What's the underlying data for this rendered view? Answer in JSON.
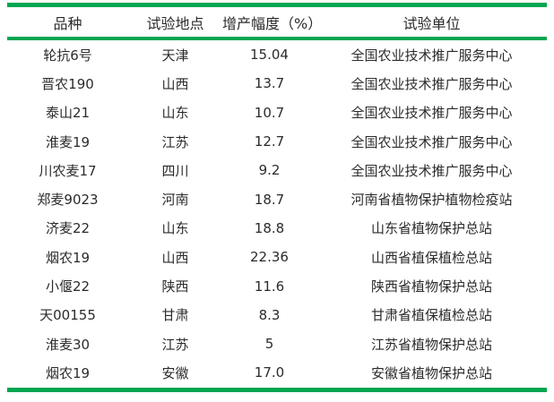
{
  "accent_color": "#00a651",
  "text_color": "#2b2b2b",
  "background_color": "#ffffff",
  "table": {
    "headers": [
      "品种",
      "试验地点",
      "增产幅度（%）",
      "试验单位"
    ],
    "column_keys": [
      "variety",
      "location",
      "yield-increase",
      "test-unit"
    ],
    "rows": [
      [
        "轮抗6号",
        "天津",
        "15.04",
        "全国农业技术推广服务中心"
      ],
      [
        "晋农190",
        "山西",
        "13.7",
        "全国农业技术推广服务中心"
      ],
      [
        "泰山21",
        "山东",
        "10.7",
        "全国农业技术推广服务中心"
      ],
      [
        "淮麦19",
        "江苏",
        "12.7",
        "全国农业技术推广服务中心"
      ],
      [
        "川农麦17",
        "四川",
        "9.2",
        "全国农业技术推广服务中心"
      ],
      [
        "郑麦9023",
        "河南",
        "18.7",
        "河南省植物保护植物检疫站"
      ],
      [
        "济麦22",
        "山东",
        "18.8",
        "山东省植物保护总站"
      ],
      [
        "烟农19",
        "山西",
        "22.36",
        "山西省植保植检总站"
      ],
      [
        "小偃22",
        "陕西",
        "11.6",
        "陕西省植物保护总站"
      ],
      [
        "天00155",
        "甘肃",
        "8.3",
        "甘肃省植保植检总站"
      ],
      [
        "淮麦30",
        "江苏",
        "5",
        "江苏省植物保护总站"
      ],
      [
        "烟农19",
        "安徽",
        "17.0",
        "安徽省植物保护总站"
      ]
    ]
  }
}
